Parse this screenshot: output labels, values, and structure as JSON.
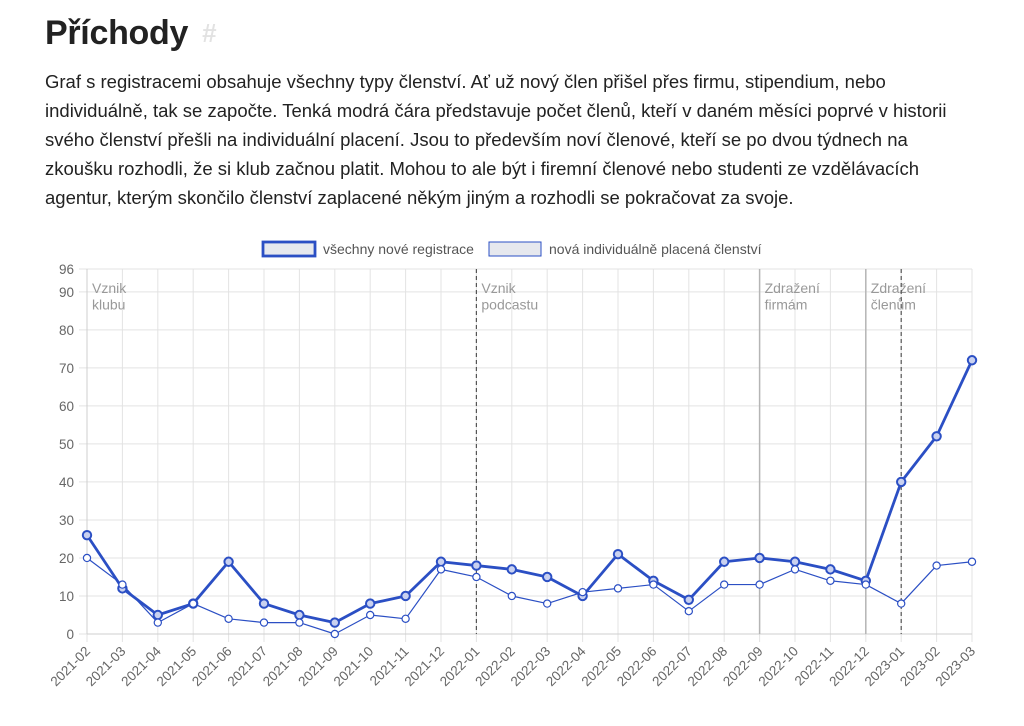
{
  "page": {
    "heading": "Příchody",
    "heading_anchor": "#",
    "intro": "Graf s registracemi obsahuje všechny typy členství. Ať už nový člen přišel přes firmu, stipendium, nebo individuálně, tak se započte. Tenká modrá čára představuje počet členů, kteří v daném měsíci poprvé v historii svého členství přešli na individuální placení. Jsou to především noví členové, kteří se po dvou týdnech na zkoušku rozhodli, že si klub začnou platit. Mohou to ale být i firemní členové nebo studenti ze vzdělávacích agentur, kterým skončilo členství zaplacené někým jiným a rozhodli se pokračovat za svoje."
  },
  "chart_data": {
    "type": "line",
    "categories": [
      "2021-02",
      "2021-03",
      "2021-04",
      "2021-05",
      "2021-06",
      "2021-07",
      "2021-08",
      "2021-09",
      "2021-10",
      "2021-11",
      "2021-12",
      "2022-01",
      "2022-02",
      "2022-03",
      "2022-04",
      "2022-05",
      "2022-06",
      "2022-07",
      "2022-08",
      "2022-09",
      "2022-10",
      "2022-11",
      "2022-12",
      "2023-01",
      "2023-02",
      "2023-03"
    ],
    "series": [
      {
        "name": "všechny nové registrace",
        "color": "#2b4fc4",
        "thick": true,
        "values": [
          26,
          12,
          5,
          8,
          19,
          8,
          5,
          3,
          8,
          10,
          19,
          18,
          17,
          15,
          10,
          21,
          14,
          9,
          19,
          20,
          19,
          17,
          14,
          40,
          52,
          72
        ]
      },
      {
        "name": "nová individuálně placená členství",
        "color": "#2b4fc4",
        "thick": false,
        "values": [
          20,
          13,
          3,
          8,
          4,
          3,
          3,
          0,
          5,
          4,
          17,
          15,
          10,
          8,
          11,
          12,
          13,
          6,
          13,
          13,
          17,
          14,
          13,
          8,
          18,
          19
        ]
      }
    ],
    "ylim": [
      0,
      96
    ],
    "yticks": [
      0,
      10,
      20,
      30,
      40,
      50,
      60,
      70,
      80,
      90,
      96
    ],
    "grid": true,
    "legend": "top-center",
    "annotations": [
      {
        "at": "2021-02",
        "lines": [
          "Vznik",
          "klubu"
        ],
        "style": "none"
      },
      {
        "at": "2022-01",
        "lines": [
          "Vznik",
          "podcastu"
        ],
        "style": "dashed"
      },
      {
        "at": "2022-09",
        "lines": [
          "Zdražení",
          "firmám"
        ],
        "style": "solid"
      },
      {
        "at": "2022-12",
        "lines": [
          "Zdražení",
          "členům"
        ],
        "style": "solid"
      },
      {
        "at": "2023-01",
        "lines": [],
        "style": "dashed"
      }
    ]
  }
}
